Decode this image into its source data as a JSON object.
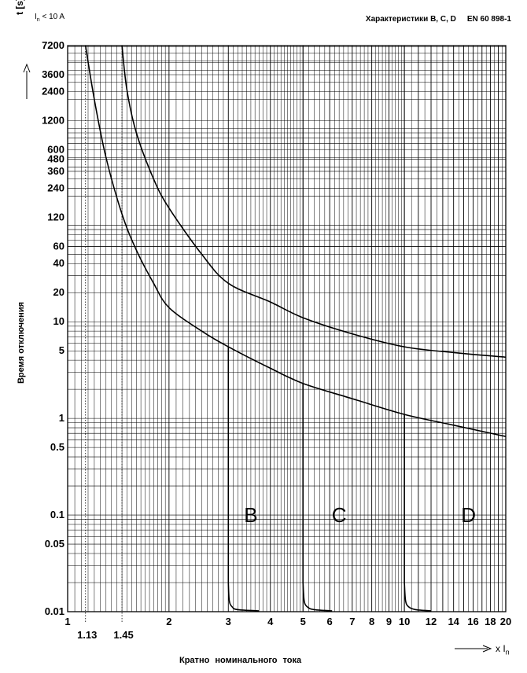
{
  "header": {
    "rated_current": "I",
    "rated_current_sub": "n",
    "rated_current_rest": " < 10 A",
    "title": "Характеристики B, C, D",
    "standard": "EN 60 898-1"
  },
  "chart_data": {
    "type": "line",
    "title": "Характеристики B, C, D",
    "xlabel": "Кратно номинального тока",
    "ylabel": "Время отключения",
    "y_unit_label": "t [s]",
    "x_unit_label": "x I",
    "x_unit_sub": "n",
    "x_scale": "log",
    "y_scale": "log",
    "xlim": [
      1,
      20
    ],
    "ylim": [
      0.01,
      7200
    ],
    "grid": true,
    "x_ticks": [
      "1",
      "2",
      "3",
      "4",
      "5",
      "6",
      "7",
      "8",
      "9",
      "10",
      "12",
      "14",
      "16",
      "18",
      "20"
    ],
    "x_extra_ticks": [
      "1.13",
      "1.45"
    ],
    "y_ticks": [
      "7200",
      "3600",
      "2400",
      "1200",
      "600",
      "480",
      "360",
      "240",
      "120",
      "60",
      "40",
      "20",
      "10",
      "5",
      "1",
      "0.5",
      "0.1",
      "0.05",
      "0.01"
    ],
    "reference_lines_x": [
      1.13,
      1.45
    ],
    "series": [
      {
        "name": "upper-thermal",
        "x": [
          1.45,
          1.5,
          1.6,
          1.8,
          2.0,
          2.5,
          3.0,
          4.0,
          5.0,
          7.0,
          10.0,
          14.0,
          20.0
        ],
        "y": [
          7200,
          2500,
          900,
          300,
          150,
          50,
          25,
          16,
          11,
          7.5,
          5.5,
          4.8,
          4.3
        ]
      },
      {
        "name": "lower-thermal",
        "x": [
          1.13,
          1.2,
          1.3,
          1.45,
          1.6,
          1.8,
          2.0,
          2.5,
          3.0,
          4.0,
          5.0,
          7.0,
          10.0,
          14.0,
          20.0
        ],
        "y": [
          7200,
          2000,
          500,
          130,
          55,
          25,
          14,
          8,
          5.5,
          3.3,
          2.3,
          1.6,
          1.1,
          0.85,
          0.65
        ]
      },
      {
        "name": "B",
        "x": [
          3.0,
          3.0,
          3.02,
          3.08,
          3.2,
          3.7
        ],
        "y": [
          5.5,
          0.02,
          0.013,
          0.0112,
          0.0105,
          0.0102
        ]
      },
      {
        "name": "C",
        "x": [
          5.0,
          5.0,
          5.04,
          5.15,
          5.4,
          6.1
        ],
        "y": [
          2.3,
          0.02,
          0.013,
          0.0112,
          0.0105,
          0.0102
        ]
      },
      {
        "name": "D",
        "x": [
          10.0,
          10.0,
          10.08,
          10.3,
          10.8,
          12.0
        ],
        "y": [
          1.1,
          0.02,
          0.013,
          0.0112,
          0.0105,
          0.0102
        ]
      }
    ],
    "region_labels": [
      {
        "text": "B",
        "x": 3.5,
        "y": 0.1
      },
      {
        "text": "C",
        "x": 6.4,
        "y": 0.1
      },
      {
        "text": "D",
        "x": 15.5,
        "y": 0.1
      }
    ]
  }
}
